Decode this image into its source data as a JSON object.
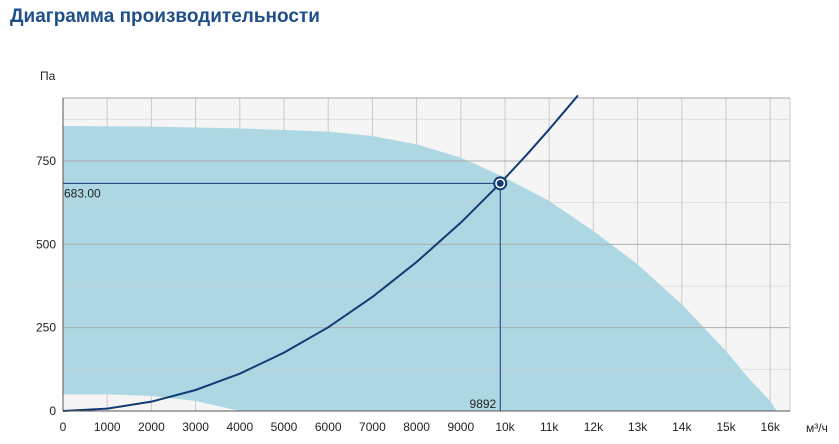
{
  "page": {
    "title": "Диаграмма производительности"
  },
  "colors": {
    "title": "#1f4f8b",
    "area_fill": "#add8e3",
    "plot_background": "#f5f5f5",
    "grid": "#cccccc",
    "curve": "#123a73",
    "axis": "#555555",
    "text": "#222222"
  },
  "chart_data": {
    "type": "line",
    "title": "",
    "ylabel": "Па",
    "xlabel": "м³/ч",
    "xlim": [
      0,
      16500
    ],
    "ylim": [
      0,
      950
    ],
    "grid": true,
    "x_ticks": [
      {
        "value": 0,
        "label": "0"
      },
      {
        "value": 1000,
        "label": "1000"
      },
      {
        "value": 2000,
        "label": "2000"
      },
      {
        "value": 3000,
        "label": "3000"
      },
      {
        "value": 4000,
        "label": "4000"
      },
      {
        "value": 5000,
        "label": "5000"
      },
      {
        "value": 6000,
        "label": "6000"
      },
      {
        "value": 7000,
        "label": "7000"
      },
      {
        "value": 8000,
        "label": "8000"
      },
      {
        "value": 9000,
        "label": "9000"
      },
      {
        "value": 10000,
        "label": "10k"
      },
      {
        "value": 11000,
        "label": "11k"
      },
      {
        "value": 12000,
        "label": "12k"
      },
      {
        "value": 13000,
        "label": "13k"
      },
      {
        "value": 14000,
        "label": "14k"
      },
      {
        "value": 15000,
        "label": "15k"
      },
      {
        "value": 16000,
        "label": "16k"
      }
    ],
    "y_ticks": [
      {
        "value": 0,
        "label": "0"
      },
      {
        "value": 250,
        "label": "250"
      },
      {
        "value": 500,
        "label": "500"
      },
      {
        "value": 750,
        "label": "750"
      }
    ],
    "operating_range": {
      "upper": [
        [
          0,
          855
        ],
        [
          2000,
          853
        ],
        [
          4000,
          848
        ],
        [
          6000,
          838
        ],
        [
          7000,
          825
        ],
        [
          8000,
          800
        ],
        [
          9000,
          760
        ],
        [
          10000,
          700
        ],
        [
          11000,
          630
        ],
        [
          12000,
          540
        ],
        [
          13000,
          440
        ],
        [
          14000,
          320
        ],
        [
          15000,
          180
        ],
        [
          15500,
          100
        ],
        [
          16000,
          30
        ],
        [
          16150,
          0
        ]
      ],
      "lower": [
        [
          0,
          50
        ],
        [
          1000,
          50
        ],
        [
          2000,
          45
        ],
        [
          3000,
          30
        ],
        [
          3500,
          15
        ],
        [
          4000,
          0
        ]
      ]
    },
    "system_curve": {
      "x": [
        0,
        1000,
        2000,
        3000,
        4000,
        5000,
        6000,
        7000,
        8000,
        9000,
        9892,
        10500,
        11000,
        11500,
        11650
      ],
      "y": [
        0,
        7,
        28,
        63,
        112,
        175,
        251,
        342,
        447,
        565,
        683,
        770,
        845,
        923,
        947
      ]
    },
    "operating_point": {
      "x": 9892,
      "y": 683.0,
      "x_label": "9892",
      "y_label": "683.00"
    }
  }
}
